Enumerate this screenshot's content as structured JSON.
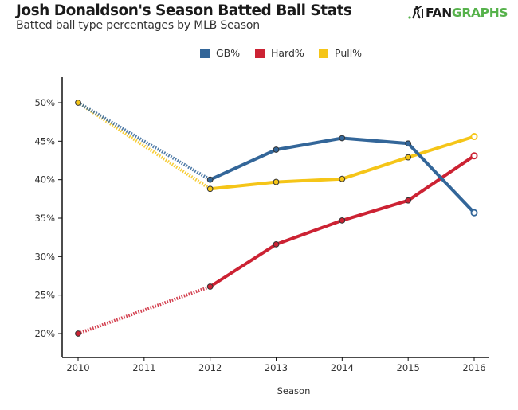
{
  "header": {
    "title": "Josh Donaldson's Season Batted Ball Stats",
    "subtitle": "Batted ball type percentages by MLB Season",
    "logo_text_dark": "FAN",
    "logo_text_green": "GRAPHS",
    "logo_icon": "batter-icon"
  },
  "colors": {
    "gb": "#336699",
    "hard": "#cc2233",
    "pull": "#f5c518",
    "logo_green": "#56b24b",
    "axis": "#111111"
  },
  "chart_data": {
    "type": "line",
    "title": "Josh Donaldson's Season Batted Ball Stats",
    "subtitle": "Batted ball type percentages by MLB Season",
    "xlabel": "Season",
    "ylabel": "",
    "x": [
      2010,
      2012,
      2013,
      2014,
      2015,
      2016
    ],
    "x_ticks": [
      "2010",
      "2011",
      "2012",
      "2013",
      "2014",
      "2015",
      "2016"
    ],
    "x_range": [
      2009.75,
      2016.25
    ],
    "y_ticks": [
      "20%",
      "25%",
      "30%",
      "35%",
      "40%",
      "45%",
      "50%"
    ],
    "y_tick_values": [
      20,
      25,
      30,
      35,
      40,
      45,
      50
    ],
    "ylim": [
      16.5,
      53.5
    ],
    "grid": false,
    "legend_position": "top-center",
    "notes": "Segment 2010-2012 drawn dotted (no 2011 data); 2016 points drawn hollow.",
    "series": [
      {
        "name": "GB%",
        "key": "gb",
        "values": [
          50.0,
          40.0,
          43.9,
          45.4,
          44.7,
          35.7
        ]
      },
      {
        "name": "Hard%",
        "key": "hard",
        "values": [
          20.0,
          26.1,
          31.6,
          34.7,
          37.3,
          43.1
        ]
      },
      {
        "name": "Pull%",
        "key": "pull",
        "values": [
          50.0,
          38.8,
          39.7,
          40.1,
          42.9,
          45.6
        ]
      }
    ]
  }
}
